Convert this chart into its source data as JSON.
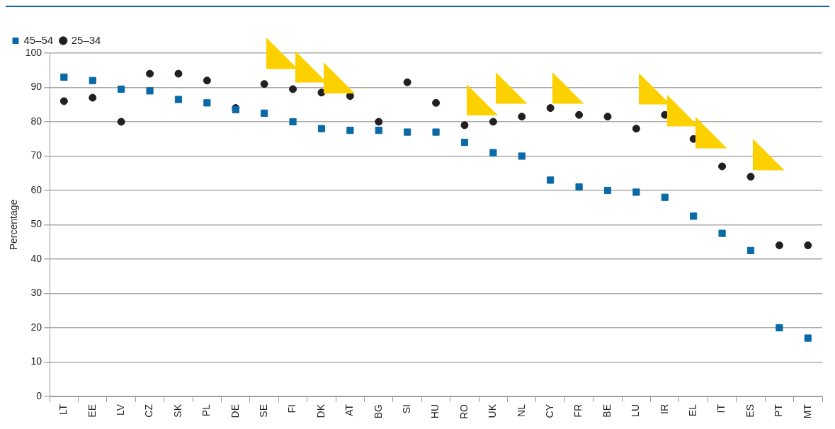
{
  "chart_data": {
    "type": "scatter",
    "ylabel": "Percentage",
    "categories": [
      "LT",
      "EE",
      "LV",
      "CZ",
      "SK",
      "PL",
      "DE",
      "SE",
      "FI",
      "DK",
      "AT",
      "BG",
      "SI",
      "HU",
      "RO",
      "UK",
      "NL",
      "CY",
      "FR",
      "BE",
      "LU",
      "IR",
      "EL",
      "IT",
      "ES",
      "PT",
      "MT"
    ],
    "series": [
      {
        "name": "25–34",
        "color": "#231f20",
        "marker": "circle",
        "values": [
          86,
          87,
          80,
          94,
          94,
          92,
          84,
          91,
          89.5,
          88.5,
          87.5,
          80,
          91.5,
          85.5,
          79,
          80,
          81.5,
          84,
          82,
          81.5,
          78,
          82,
          75,
          67,
          64,
          44,
          44
        ]
      },
      {
        "name": "45–54",
        "color": "#0a6aa8",
        "marker": "square",
        "values": [
          93,
          92,
          89.5,
          89,
          86.5,
          85.5,
          83.5,
          82.5,
          80,
          78,
          77.5,
          77.5,
          77,
          77,
          74,
          71,
          70,
          63,
          61,
          60,
          59.5,
          58,
          52.5,
          47.5,
          42.5,
          20,
          17
        ]
      }
    ],
    "ylim": [
      0,
      100
    ],
    "yticks": [
      0,
      10,
      20,
      30,
      40,
      50,
      60,
      70,
      80,
      90,
      100
    ],
    "grid": "y",
    "legend": "top left"
  }
}
